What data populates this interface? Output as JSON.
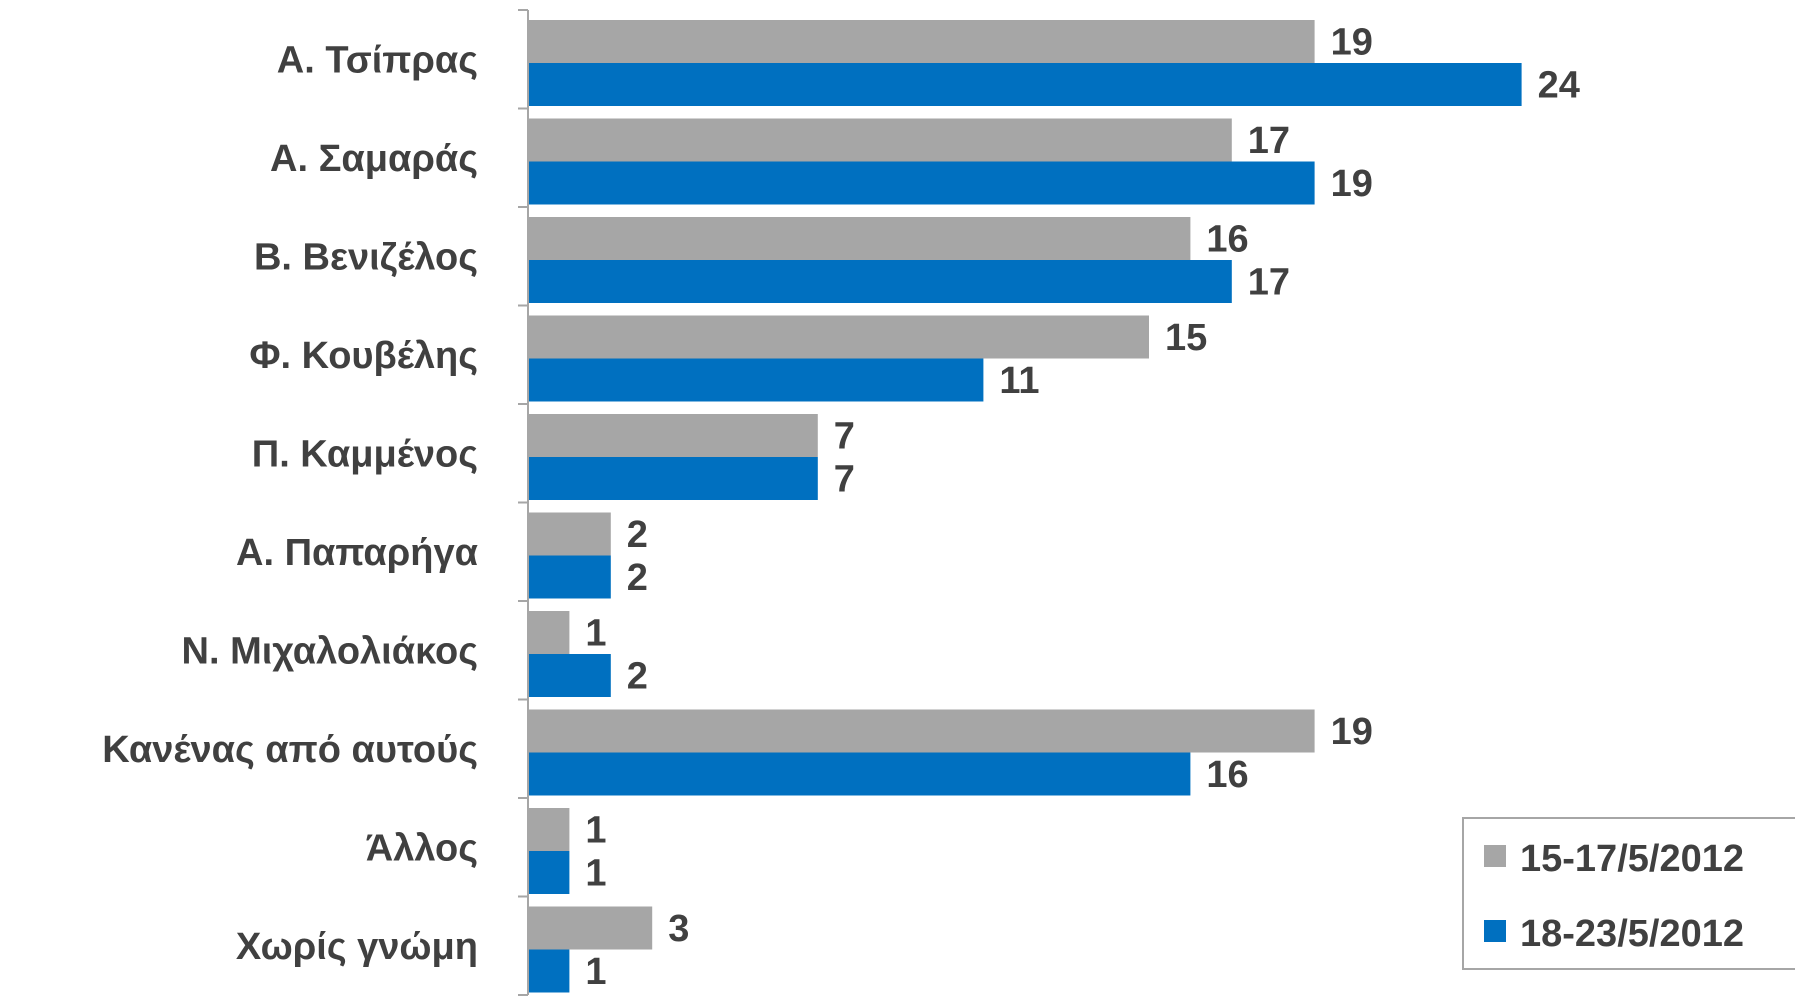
{
  "chart_data": {
    "type": "bar",
    "orientation": "horizontal",
    "categories": [
      "Α. Τσίπρας",
      "Α. Σαμαράς",
      "Β. Βενιζέλος",
      "Φ. Κουβέλης",
      "Π. Καμμένος",
      "Α. Παπαρήγα",
      "Ν. Μιχαλολιάκος",
      "Κανένας από αυτούς",
      "Άλλος",
      "Χωρίς γνώμη"
    ],
    "series": [
      {
        "name": "15-17/5/2012",
        "color": "#A6A6A6",
        "values": [
          19,
          17,
          16,
          15,
          7,
          2,
          1,
          19,
          1,
          3
        ]
      },
      {
        "name": "18-23/5/2012",
        "color": "#0070C0",
        "values": [
          24,
          19,
          17,
          11,
          7,
          2,
          2,
          16,
          1,
          1
        ]
      }
    ],
    "xlim": [
      0,
      30
    ],
    "grid": false,
    "legend_position": "bottom-right",
    "title": "",
    "xlabel": "",
    "ylabel": ""
  }
}
